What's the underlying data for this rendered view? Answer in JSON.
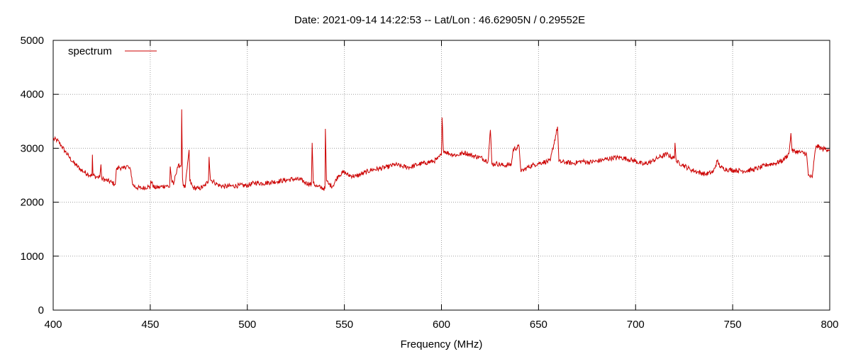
{
  "title": "Date: 2021-09-14 14:22:53  --  Lat/Lon : 46.62905N / 0.29552E",
  "chart_data": {
    "type": "line",
    "title": "Date: 2021-09-14 14:22:53  --  Lat/Lon : 46.62905N / 0.29552E",
    "xlabel": "Frequency (MHz)",
    "ylabel": "",
    "xlim": [
      400,
      800
    ],
    "ylim": [
      0,
      5000
    ],
    "xticks": [
      400,
      450,
      500,
      550,
      600,
      650,
      700,
      750,
      800
    ],
    "yticks": [
      0,
      1000,
      2000,
      3000,
      4000,
      5000
    ],
    "grid": true,
    "legend": "top-left",
    "series": [
      {
        "name": "spectrum",
        "color": "#cc0000",
        "points": [
          [
            400,
            3170
          ],
          [
            402,
            3150
          ],
          [
            404,
            3060
          ],
          [
            406,
            2950
          ],
          [
            408,
            2850
          ],
          [
            410,
            2750
          ],
          [
            412,
            2680
          ],
          [
            414,
            2610
          ],
          [
            416,
            2560
          ],
          [
            418,
            2520
          ],
          [
            420,
            2490
          ],
          [
            420.2,
            2880
          ],
          [
            420.5,
            2500
          ],
          [
            422,
            2470
          ],
          [
            424,
            2460
          ],
          [
            424.6,
            2700
          ],
          [
            425,
            2440
          ],
          [
            427,
            2410
          ],
          [
            430,
            2370
          ],
          [
            432,
            2330
          ],
          [
            432.5,
            2600
          ],
          [
            434,
            2650
          ],
          [
            436,
            2620
          ],
          [
            438,
            2680
          ],
          [
            440,
            2580
          ],
          [
            441,
            2320
          ],
          [
            443,
            2270
          ],
          [
            446,
            2260
          ],
          [
            449,
            2290
          ],
          [
            450,
            2260
          ],
          [
            450.3,
            2400
          ],
          [
            452,
            2270
          ],
          [
            455,
            2280
          ],
          [
            458,
            2310
          ],
          [
            460,
            2280
          ],
          [
            460.3,
            2660
          ],
          [
            461,
            2400
          ],
          [
            462,
            2320
          ],
          [
            463,
            2500
          ],
          [
            464,
            2650
          ],
          [
            466,
            2700
          ],
          [
            466.2,
            3720
          ],
          [
            466.6,
            2450
          ],
          [
            467,
            2300
          ],
          [
            468,
            2270
          ],
          [
            469.5,
            2800
          ],
          [
            470,
            2970
          ],
          [
            470.4,
            2400
          ],
          [
            472,
            2270
          ],
          [
            475,
            2250
          ],
          [
            478,
            2300
          ],
          [
            480,
            2400
          ],
          [
            480.3,
            2840
          ],
          [
            481,
            2420
          ],
          [
            483,
            2370
          ],
          [
            485,
            2320
          ],
          [
            488,
            2290
          ],
          [
            492,
            2300
          ],
          [
            496,
            2310
          ],
          [
            500,
            2310
          ],
          [
            504,
            2360
          ],
          [
            508,
            2350
          ],
          [
            512,
            2370
          ],
          [
            516,
            2390
          ],
          [
            520,
            2410
          ],
          [
            524,
            2430
          ],
          [
            528,
            2410
          ],
          [
            530,
            2360
          ],
          [
            533,
            2330
          ],
          [
            533.4,
            3100
          ],
          [
            534,
            2350
          ],
          [
            536,
            2290
          ],
          [
            538,
            2270
          ],
          [
            540,
            2250
          ],
          [
            540.2,
            3360
          ],
          [
            540.8,
            2400
          ],
          [
            542,
            2330
          ],
          [
            544,
            2300
          ],
          [
            547,
            2500
          ],
          [
            550,
            2560
          ],
          [
            552,
            2500
          ],
          [
            556,
            2480
          ],
          [
            560,
            2540
          ],
          [
            564,
            2600
          ],
          [
            568,
            2620
          ],
          [
            572,
            2650
          ],
          [
            576,
            2700
          ],
          [
            580,
            2660
          ],
          [
            584,
            2650
          ],
          [
            588,
            2700
          ],
          [
            592,
            2730
          ],
          [
            596,
            2760
          ],
          [
            598,
            2800
          ],
          [
            600,
            2880
          ],
          [
            600.3,
            3570
          ],
          [
            601,
            2960
          ],
          [
            604,
            2900
          ],
          [
            608,
            2870
          ],
          [
            612,
            2920
          ],
          [
            616,
            2860
          ],
          [
            620,
            2830
          ],
          [
            624,
            2760
          ],
          [
            625.2,
            3340
          ],
          [
            626,
            2700
          ],
          [
            628,
            2720
          ],
          [
            632,
            2680
          ],
          [
            636,
            2700
          ],
          [
            637,
            2980
          ],
          [
            640,
            3030
          ],
          [
            641,
            2560
          ],
          [
            644,
            2640
          ],
          [
            648,
            2700
          ],
          [
            652,
            2740
          ],
          [
            656,
            2760
          ],
          [
            659.8,
            3400
          ],
          [
            660.5,
            2750
          ],
          [
            664,
            2740
          ],
          [
            668,
            2720
          ],
          [
            672,
            2760
          ],
          [
            676,
            2740
          ],
          [
            680,
            2760
          ],
          [
            684,
            2790
          ],
          [
            688,
            2820
          ],
          [
            692,
            2830
          ],
          [
            696,
            2800
          ],
          [
            700,
            2760
          ],
          [
            704,
            2700
          ],
          [
            708,
            2750
          ],
          [
            712,
            2830
          ],
          [
            716,
            2890
          ],
          [
            720,
            2810
          ],
          [
            720.3,
            3100
          ],
          [
            721,
            2750
          ],
          [
            724,
            2700
          ],
          [
            728,
            2610
          ],
          [
            732,
            2560
          ],
          [
            736,
            2520
          ],
          [
            740,
            2560
          ],
          [
            742,
            2760
          ],
          [
            744,
            2640
          ],
          [
            748,
            2600
          ],
          [
            752,
            2590
          ],
          [
            756,
            2580
          ],
          [
            760,
            2600
          ],
          [
            764,
            2640
          ],
          [
            768,
            2700
          ],
          [
            772,
            2720
          ],
          [
            776,
            2780
          ],
          [
            779,
            2900
          ],
          [
            780,
            3280
          ],
          [
            780.6,
            2950
          ],
          [
            784,
            2930
          ],
          [
            788,
            2900
          ],
          [
            789,
            2500
          ],
          [
            791,
            2450
          ],
          [
            792,
            2800
          ],
          [
            793,
            3050
          ],
          [
            796,
            2990
          ],
          [
            800,
            2980
          ]
        ]
      }
    ]
  }
}
